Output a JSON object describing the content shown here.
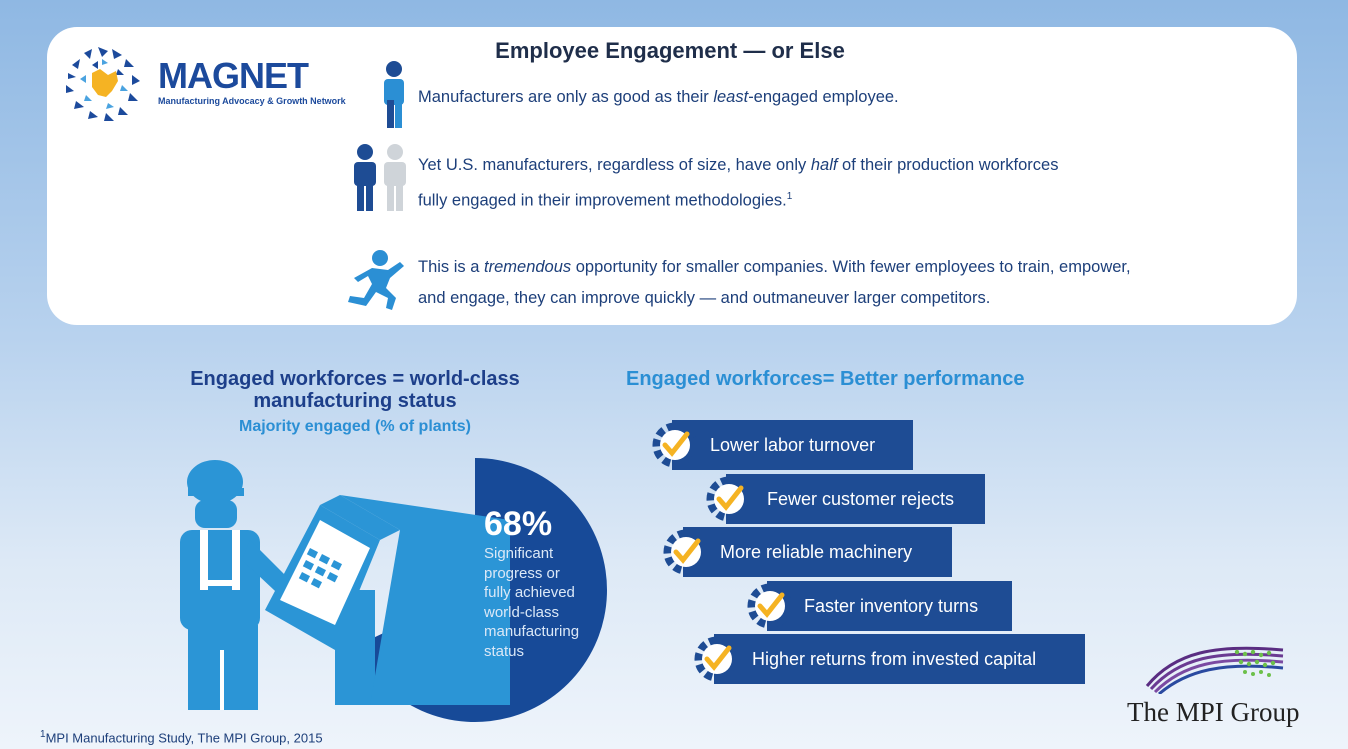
{
  "header": {
    "title": "Employee Engagement — or Else",
    "logo_word": "MAGNET",
    "logo_sub": "Manufacturing Advocacy & Growth Network"
  },
  "statements": [
    {
      "pre": "Manufacturers are only as good as their ",
      "em": "least",
      "post": "-engaged employee."
    },
    {
      "pre": "Yet U.S. manufacturers, regardless of size, have only ",
      "em": "half",
      "post": " of their production workforces",
      "line2": "fully engaged in their improvement methodologies.",
      "sup": "1"
    },
    {
      "pre": "This is a ",
      "em": "tremendous",
      "post": " opportunity for smaller companies. With fewer employees to train, empower,",
      "line2": "and engage, they can improve quickly — and outmaneuver larger competitors."
    }
  ],
  "left": {
    "heading_line1": "Engaged workforces = world-class",
    "heading_line2": "manufacturing status",
    "subheading": "Majority engaged (% of plants)",
    "pct": "68%",
    "desc": [
      "Significant",
      "progress or",
      "fully achieved",
      "world-class",
      "manufacturing",
      "status"
    ]
  },
  "right": {
    "heading": "Engaged workforces= Better performance",
    "items": [
      "Lower labor turnover",
      "Fewer customer rejects",
      "More reliable machinery",
      "Faster inventory turns",
      "Higher returns from invested capital"
    ]
  },
  "chart_data": {
    "type": "pie",
    "title": "Majority engaged (% of plants)",
    "slices": [
      {
        "name": "Significant progress or fully achieved world-class manufacturing status",
        "value": 68
      }
    ]
  },
  "footer": {
    "footnote": "MPI Manufacturing Study, The MPI Group, 2015",
    "footnote_sup": "1",
    "company": "The MPI Group"
  },
  "colors": {
    "navy": "#1e4c94",
    "sky": "#2b8fd4",
    "pie": "#174a98",
    "gear": "#1e4c94",
    "check": "#f5b323"
  }
}
